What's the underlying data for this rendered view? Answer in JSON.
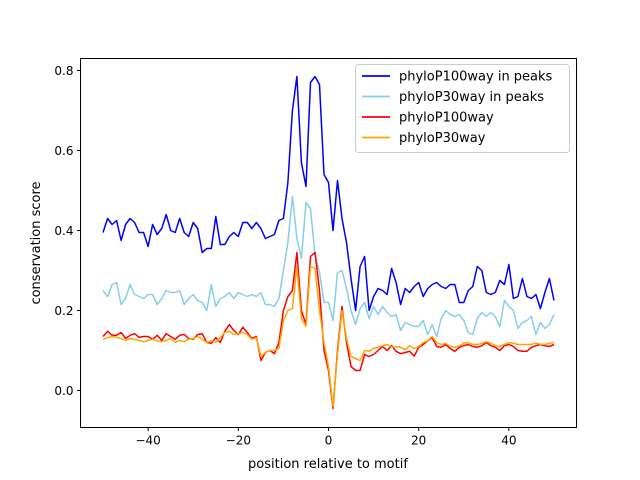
{
  "chart_data": {
    "type": "line",
    "title": "",
    "xlabel": "position relative to motif",
    "ylabel": "conservation score",
    "xlim": [
      -55,
      55
    ],
    "ylim": [
      -0.0925,
      0.83
    ],
    "xticks": [
      -40,
      -20,
      0,
      20,
      40
    ],
    "xtick_labels": [
      "−40",
      "−20",
      "0",
      "20",
      "40"
    ],
    "yticks": [
      0.0,
      0.2,
      0.4,
      0.6,
      0.8
    ],
    "ytick_labels": [
      "0.0",
      "0.2",
      "0.4",
      "0.6",
      "0.8"
    ],
    "grid": false,
    "legend_position": "top-right",
    "x_start": -50,
    "x_end": 50,
    "series": [
      {
        "name": "phyloP100way in peaks",
        "color": "#0000ff",
        "values": [
          0.395,
          0.43,
          0.415,
          0.425,
          0.375,
          0.415,
          0.43,
          0.42,
          0.395,
          0.395,
          0.36,
          0.415,
          0.39,
          0.405,
          0.44,
          0.4,
          0.395,
          0.43,
          0.395,
          0.385,
          0.42,
          0.405,
          0.345,
          0.355,
          0.355,
          0.435,
          0.365,
          0.365,
          0.385,
          0.395,
          0.385,
          0.42,
          0.42,
          0.405,
          0.42,
          0.405,
          0.38,
          0.385,
          0.39,
          0.425,
          0.43,
          0.52,
          0.7,
          0.785,
          0.57,
          0.51,
          0.77,
          0.785,
          0.765,
          0.54,
          0.52,
          0.4,
          0.525,
          0.43,
          0.37,
          0.28,
          0.2,
          0.31,
          0.335,
          0.2,
          0.235,
          0.255,
          0.25,
          0.24,
          0.305,
          0.27,
          0.215,
          0.255,
          0.245,
          0.26,
          0.27,
          0.235,
          0.255,
          0.265,
          0.27,
          0.26,
          0.255,
          0.265,
          0.265,
          0.22,
          0.22,
          0.25,
          0.26,
          0.31,
          0.3,
          0.245,
          0.24,
          0.245,
          0.275,
          0.265,
          0.315,
          0.23,
          0.235,
          0.28,
          0.235,
          0.23,
          0.24,
          0.205,
          0.245,
          0.28,
          0.225
        ]
      },
      {
        "name": "phyloP30way in peaks",
        "color": "#87ceeb",
        "values": [
          0.25,
          0.235,
          0.265,
          0.27,
          0.215,
          0.23,
          0.265,
          0.24,
          0.235,
          0.23,
          0.24,
          0.24,
          0.215,
          0.23,
          0.25,
          0.245,
          0.245,
          0.25,
          0.215,
          0.23,
          0.24,
          0.225,
          0.22,
          0.2,
          0.265,
          0.21,
          0.23,
          0.235,
          0.245,
          0.23,
          0.245,
          0.24,
          0.235,
          0.24,
          0.235,
          0.245,
          0.215,
          0.215,
          0.21,
          0.23,
          0.3,
          0.37,
          0.485,
          0.38,
          0.33,
          0.47,
          0.455,
          0.34,
          0.295,
          0.22,
          0.22,
          0.175,
          0.295,
          0.3,
          0.255,
          0.2,
          0.165,
          0.205,
          0.22,
          0.18,
          0.21,
          0.19,
          0.21,
          0.195,
          0.185,
          0.19,
          0.15,
          0.17,
          0.165,
          0.16,
          0.16,
          0.175,
          0.14,
          0.165,
          0.135,
          0.18,
          0.2,
          0.19,
          0.185,
          0.19,
          0.175,
          0.145,
          0.14,
          0.18,
          0.195,
          0.185,
          0.195,
          0.185,
          0.16,
          0.225,
          0.21,
          0.2,
          0.155,
          0.17,
          0.175,
          0.185,
          0.14,
          0.17,
          0.155,
          0.165,
          0.19
        ]
      },
      {
        "name": "phyloP100way",
        "color": "#ff0000",
        "values": [
          0.135,
          0.148,
          0.138,
          0.138,
          0.145,
          0.13,
          0.138,
          0.142,
          0.133,
          0.135,
          0.135,
          0.128,
          0.138,
          0.125,
          0.142,
          0.135,
          0.128,
          0.138,
          0.14,
          0.13,
          0.128,
          0.14,
          0.142,
          0.12,
          0.118,
          0.132,
          0.12,
          0.148,
          0.165,
          0.15,
          0.14,
          0.158,
          0.145,
          0.13,
          0.135,
          0.075,
          0.095,
          0.1,
          0.092,
          0.12,
          0.2,
          0.235,
          0.25,
          0.345,
          0.2,
          0.165,
          0.335,
          0.345,
          0.25,
          0.1,
          0.05,
          -0.045,
          0.1,
          0.21,
          0.12,
          0.06,
          0.05,
          0.05,
          0.09,
          0.085,
          0.09,
          0.1,
          0.11,
          0.1,
          0.112,
          0.098,
          0.092,
          0.095,
          0.098,
          0.086,
          0.108,
          0.115,
          0.125,
          0.132,
          0.11,
          0.108,
          0.115,
          0.105,
          0.098,
          0.108,
          0.112,
          0.115,
          0.11,
          0.108,
          0.112,
          0.12,
          0.112,
          0.108,
          0.1,
          0.112,
          0.115,
          0.11,
          0.1,
          0.098,
          0.098,
          0.108,
          0.112,
          0.115,
          0.112,
          0.11,
          0.115
        ]
      },
      {
        "name": "phyloP30way",
        "color": "#ffa500",
        "values": [
          0.128,
          0.132,
          0.135,
          0.133,
          0.13,
          0.125,
          0.13,
          0.128,
          0.125,
          0.122,
          0.125,
          0.128,
          0.124,
          0.122,
          0.125,
          0.13,
          0.12,
          0.125,
          0.122,
          0.128,
          0.13,
          0.135,
          0.128,
          0.12,
          0.125,
          0.12,
          0.132,
          0.145,
          0.148,
          0.14,
          0.142,
          0.145,
          0.14,
          0.128,
          0.132,
          0.085,
          0.095,
          0.1,
          0.1,
          0.105,
          0.175,
          0.2,
          0.205,
          0.31,
          0.18,
          0.16,
          0.31,
          0.305,
          0.2,
          0.12,
          0.06,
          -0.04,
          0.09,
          0.2,
          0.13,
          0.085,
          0.08,
          0.075,
          0.1,
          0.098,
          0.105,
          0.108,
          0.112,
          0.115,
          0.108,
          0.11,
          0.108,
          0.102,
          0.112,
          0.105,
          0.11,
          0.12,
          0.125,
          0.135,
          0.12,
          0.115,
          0.118,
          0.11,
          0.108,
          0.112,
          0.118,
          0.12,
          0.115,
          0.115,
          0.118,
          0.122,
          0.118,
          0.112,
          0.11,
          0.115,
          0.12,
          0.118,
          0.115,
          0.115,
          0.115,
          0.115,
          0.118,
          0.116,
          0.115,
          0.118,
          0.12
        ]
      }
    ]
  }
}
